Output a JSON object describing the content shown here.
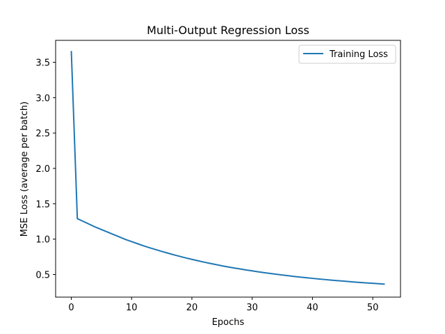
{
  "chart_data": {
    "type": "line",
    "title": "Multi-Output Regression Loss",
    "xlabel": "Epochs",
    "ylabel": "MSE Loss (average per batch)",
    "xlim": [
      -2.6,
      54.6
    ],
    "ylim": [
      0.18,
      3.81
    ],
    "xticks": [
      0,
      10,
      20,
      30,
      40,
      50
    ],
    "yticks": [
      0.5,
      1.0,
      1.5,
      2.0,
      2.5,
      3.0,
      3.5
    ],
    "grid": false,
    "legend_position": "top-right",
    "series": [
      {
        "name": "Training Loss",
        "color": "#1f77b4",
        "x": [
          0,
          1,
          2,
          3,
          4,
          5,
          6,
          7,
          8,
          9,
          10,
          11,
          12,
          13,
          14,
          15,
          16,
          17,
          18,
          19,
          20,
          21,
          22,
          23,
          24,
          25,
          26,
          27,
          28,
          29,
          30,
          31,
          32,
          33,
          34,
          35,
          36,
          37,
          38,
          39,
          40,
          41,
          42,
          43,
          44,
          45,
          46,
          47,
          48,
          49,
          50,
          51,
          52
        ],
        "y": [
          3.66,
          1.29,
          1.25,
          1.21,
          1.17,
          1.135,
          1.1,
          1.065,
          1.03,
          0.995,
          0.965,
          0.935,
          0.905,
          0.878,
          0.852,
          0.826,
          0.802,
          0.778,
          0.756,
          0.734,
          0.714,
          0.694,
          0.675,
          0.657,
          0.64,
          0.623,
          0.607,
          0.592,
          0.578,
          0.564,
          0.551,
          0.538,
          0.526,
          0.514,
          0.503,
          0.492,
          0.482,
          0.472,
          0.463,
          0.454,
          0.445,
          0.437,
          0.429,
          0.421,
          0.414,
          0.407,
          0.4,
          0.393,
          0.387,
          0.381,
          0.375,
          0.369,
          0.363
        ]
      }
    ]
  }
}
